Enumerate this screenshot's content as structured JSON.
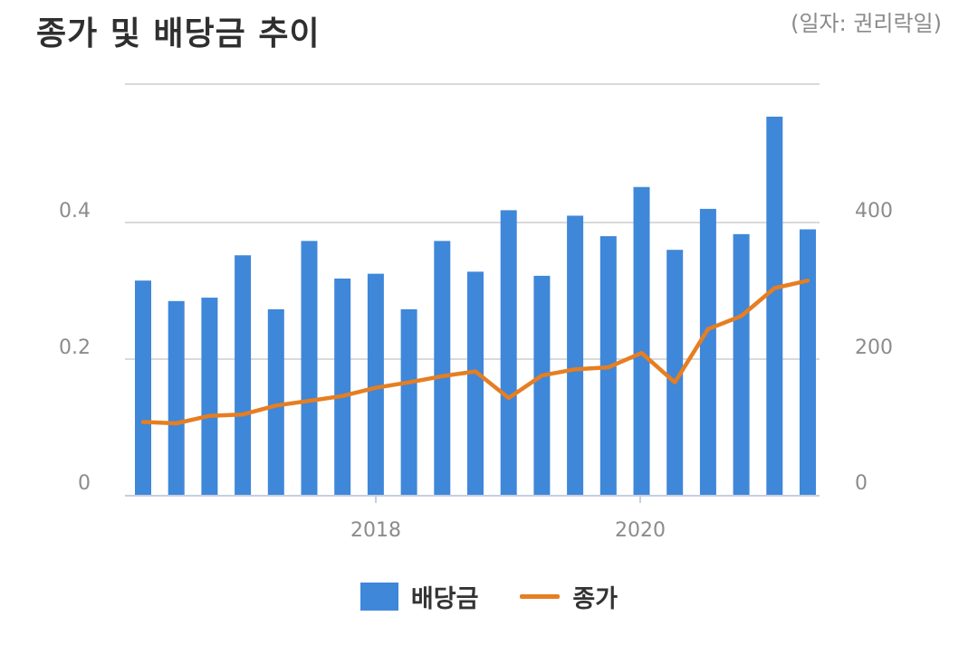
{
  "title": "종가 및 배당금 추이",
  "note": "(일자: 권리락일)",
  "legend": {
    "dividend": "배당금",
    "price": "종가"
  },
  "colors": {
    "dividend": "#3f87d9",
    "price": "#e67e22",
    "grid": "#d9d9d9",
    "axis": "#c5cfe0"
  },
  "chart_data": {
    "type": "bar",
    "title": "종가 및 배당금 추이",
    "x_tick_labels": [
      "2018",
      "2020"
    ],
    "y_left": {
      "ticks": [
        0,
        0.2,
        0.4
      ],
      "tick_labels": [
        "0",
        "0.2",
        "0.4"
      ],
      "range": [
        0,
        0.6
      ]
    },
    "y_right": {
      "ticks": [
        0,
        200,
        400
      ],
      "tick_labels": [
        "0",
        "200",
        "400"
      ],
      "range": [
        0,
        600
      ]
    },
    "grid": true,
    "legend_position": "bottom",
    "series": [
      {
        "name": "배당금",
        "type": "bar",
        "axis": "left",
        "values": [
          0.315,
          0.285,
          0.29,
          0.352,
          0.273,
          0.373,
          0.318,
          0.325,
          0.273,
          0.373,
          0.328,
          0.418,
          0.322,
          0.41,
          0.38,
          0.452,
          0.36,
          0.42,
          0.383,
          0.555,
          0.39
        ]
      },
      {
        "name": "종가",
        "type": "line",
        "axis": "right",
        "values": [
          108,
          106,
          117,
          119,
          132,
          139,
          146,
          158,
          166,
          175,
          182,
          143,
          176,
          185,
          188,
          209,
          166,
          244,
          263,
          304,
          315
        ]
      }
    ]
  }
}
